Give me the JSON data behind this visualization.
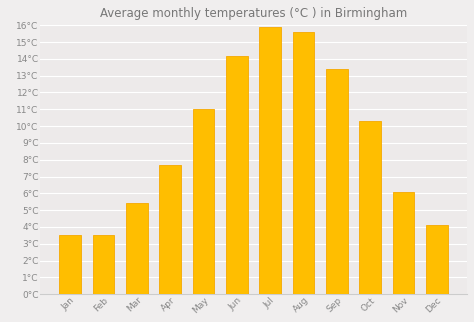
{
  "title": "Average monthly temperatures (°C ) in Birmingham",
  "months": [
    "Jan",
    "Feb",
    "Mar",
    "Apr",
    "May",
    "Jun",
    "Jul",
    "Aug",
    "Sep",
    "Oct",
    "Nov",
    "Dec"
  ],
  "values": [
    3.5,
    3.5,
    5.4,
    7.7,
    11.0,
    14.2,
    15.9,
    15.6,
    13.4,
    10.3,
    6.1,
    4.1
  ],
  "bar_color": "#FFBE00",
  "bar_edge_color": "#F5A800",
  "ylim": [
    0,
    16
  ],
  "ytick_step": 1,
  "background_color": "#f0eeee",
  "plot_bg_color": "#edeaea",
  "grid_color": "#ffffff",
  "title_fontsize": 8.5,
  "tick_fontsize": 6.5,
  "tick_color": "#888888",
  "title_color": "#777777",
  "spine_color": "#cccccc"
}
